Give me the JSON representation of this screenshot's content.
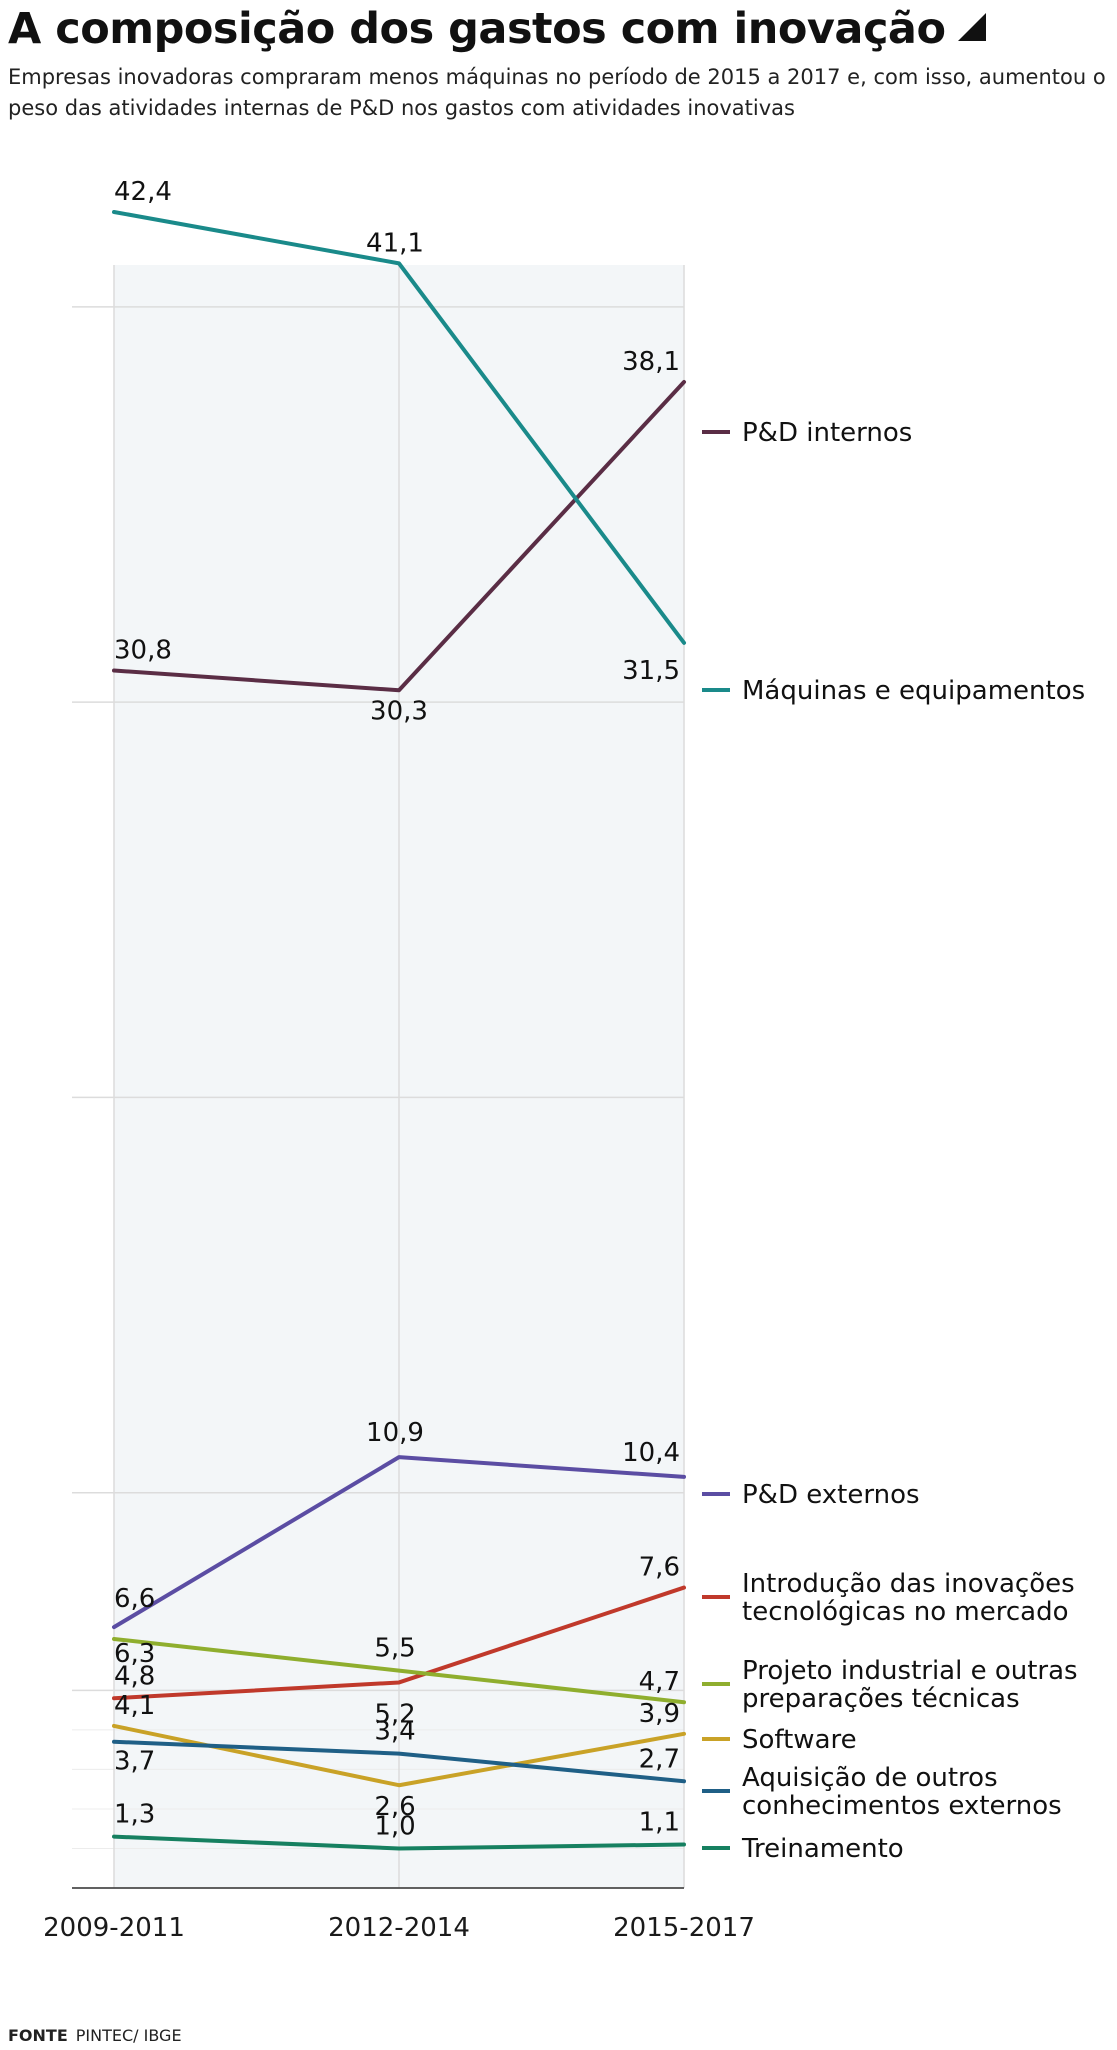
{
  "header": {
    "title": "A composição dos gastos com inovação",
    "subtitle": "Empresas inovadoras compraram menos máquinas no período de 2015 a 2017 e, com isso, aumentou o peso das atividades internas de P&D nos gastos com atividades inovativas"
  },
  "footer": {
    "source_label": "FONTE",
    "source_text": "PINTEC/ IBGE"
  },
  "colors": {
    "grid": "#dcdcdc",
    "band": "#f3f6f8",
    "axis": "#333333"
  },
  "chart_data": {
    "type": "line",
    "title": "A composição dos gastos com inovação",
    "x": [
      "2009-2011",
      "2012-2014",
      "2015-2017"
    ],
    "ylim": [
      0,
      45
    ],
    "grid": true,
    "legend": "right",
    "series": [
      {
        "name": "P&D internos",
        "values": [
          30.8,
          30.3,
          38.1
        ],
        "labels": [
          "30,8",
          "30,3",
          "38,1"
        ],
        "color": "#5a2d45"
      },
      {
        "name": "Máquinas e equipamentos",
        "values": [
          42.4,
          41.1,
          31.5
        ],
        "labels": [
          "42,4",
          "41,1",
          "31,5"
        ],
        "color": "#1a8a8a"
      },
      {
        "name": "P&D externos",
        "values": [
          6.6,
          10.9,
          10.4
        ],
        "labels": [
          "6,6",
          "10,9",
          "10,4"
        ],
        "color": "#5b4da3"
      },
      {
        "name": "Introdução das inovações tecnológicas no mercado",
        "values": [
          4.8,
          5.2,
          7.6
        ],
        "labels": [
          "4,8",
          "5,2",
          "7,6"
        ],
        "color": "#c0392b"
      },
      {
        "name": "Projeto industrial e outras preparações técnicas",
        "values": [
          6.3,
          5.5,
          4.7
        ],
        "labels": [
          "6,3",
          "5,5",
          "4,7"
        ],
        "color": "#8fae2e"
      },
      {
        "name": "Software",
        "values": [
          4.1,
          2.6,
          3.9
        ],
        "labels": [
          "4,1",
          "2,6",
          "3,9"
        ],
        "color": "#c9a227"
      },
      {
        "name": "Aquisição de outros conhecimentos externos",
        "values": [
          3.7,
          3.4,
          2.7
        ],
        "labels": [
          "3,7",
          "3,4",
          "2,7"
        ],
        "color": "#1f5f86"
      },
      {
        "name": "Treinamento",
        "values": [
          1.3,
          1.0,
          1.1
        ],
        "labels": [
          "1,3",
          "1,0",
          "1,1"
        ],
        "color": "#168060"
      }
    ]
  }
}
